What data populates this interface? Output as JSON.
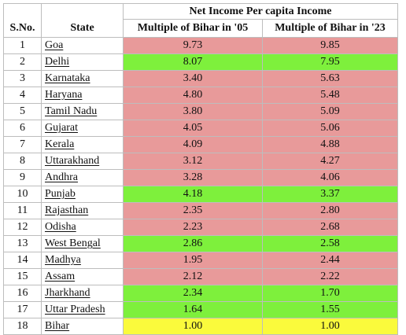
{
  "header": {
    "group_title": "Net Income Per capita Income",
    "sno_label": "S.No.",
    "state_label": "State",
    "col05_label": "Multiple of Bihar in '05",
    "col23_label": "Multiple of Bihar in '23"
  },
  "legend_colors": {
    "red": "#e89a9a",
    "green": "#7ef03c",
    "yellow": "#fafa3c"
  },
  "rows": [
    {
      "sno": "1",
      "state": "Goa",
      "v05": "9.73",
      "v23": "9.85",
      "color": "red"
    },
    {
      "sno": "2",
      "state": "Delhi",
      "v05": "8.07",
      "v23": "7.95",
      "color": "green"
    },
    {
      "sno": "3",
      "state": "Karnataka",
      "v05": "3.40",
      "v23": "5.63",
      "color": "red"
    },
    {
      "sno": "4",
      "state": "Haryana",
      "v05": "4.80",
      "v23": "5.48",
      "color": "red"
    },
    {
      "sno": "5",
      "state": "Tamil Nadu",
      "v05": "3.80",
      "v23": "5.09",
      "color": "red"
    },
    {
      "sno": "6",
      "state": "Gujarat",
      "v05": "4.05",
      "v23": "5.06",
      "color": "red"
    },
    {
      "sno": "7",
      "state": "Kerala",
      "v05": "4.09",
      "v23": "4.88",
      "color": "red"
    },
    {
      "sno": "8",
      "state": "Uttarakhand",
      "v05": "3.12",
      "v23": "4.27",
      "color": "red"
    },
    {
      "sno": "9",
      "state": "Andhra",
      "v05": "3.28",
      "v23": "4.06",
      "color": "red"
    },
    {
      "sno": "10",
      "state": "Punjab",
      "v05": "4.18",
      "v23": "3.37",
      "color": "green"
    },
    {
      "sno": "11",
      "state": "Rajasthan",
      "v05": "2.35",
      "v23": "2.80",
      "color": "red"
    },
    {
      "sno": "12",
      "state": "Odisha",
      "v05": "2.23",
      "v23": "2.68",
      "color": "red"
    },
    {
      "sno": "13",
      "state": "West Bengal",
      "v05": "2.86",
      "v23": "2.58",
      "color": "green"
    },
    {
      "sno": "14",
      "state": "Madhya",
      "v05": "1.95",
      "v23": "2.44",
      "color": "red"
    },
    {
      "sno": "15",
      "state": "Assam",
      "v05": "2.12",
      "v23": "2.22",
      "color": "red"
    },
    {
      "sno": "16",
      "state": "Jharkhand",
      "v05": "2.34",
      "v23": "1.70",
      "color": "green"
    },
    {
      "sno": "17",
      "state": "Uttar Pradesh",
      "v05": "1.64",
      "v23": "1.55",
      "color": "green"
    },
    {
      "sno": "18",
      "state": "Bihar",
      "v05": "1.00",
      "v23": "1.00",
      "color": "yellow"
    }
  ]
}
